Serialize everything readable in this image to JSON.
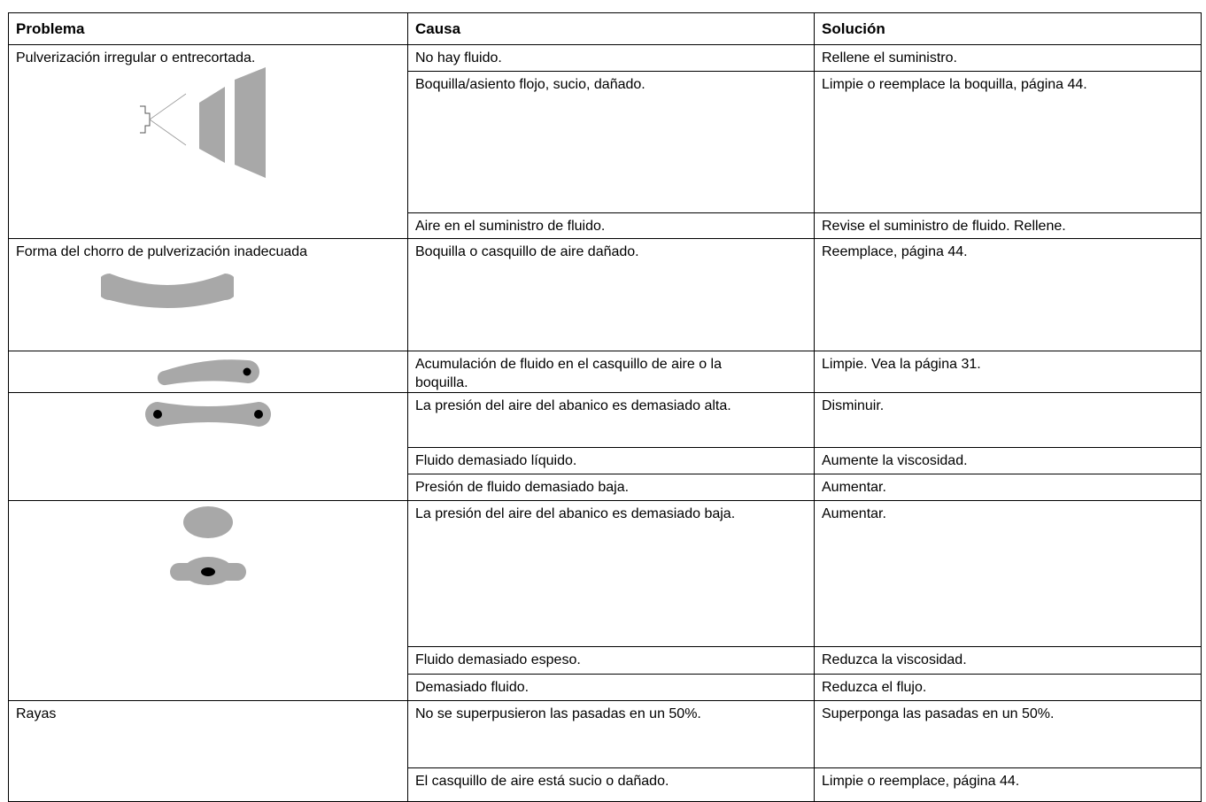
{
  "table": {
    "header": [
      "Problema",
      "Causa",
      "Solución"
    ],
    "groups": [
      {
        "problem": "Pulverización irregular o entrecortada.",
        "causes": [
          {
            "cause": "No hay fluido.",
            "solution": "Rellene el suministro."
          },
          {
            "cause": "Boquilla/asiento flojo, sucio, dañado.",
            "solution": "Limpie o reemplace la boquilla, página 44."
          },
          {
            "cause": "Aire en el suministro de fluido.",
            "solution": "Revise el suministro de fluido. Rellene."
          }
        ]
      },
      {
        "problem": "Forma del chorro de pulverización inadecuada",
        "causes": [
          {
            "cause": "Boquilla o casquillo de aire dañado.",
            "solution": "Reemplace, página 44."
          }
        ]
      },
      {
        "causes": [
          {
            "cause": "Acumulación de fluido en el casquillo de aire o la boquilla.",
            "solution": "Limpie. Vea la página 31."
          }
        ]
      },
      {
        "causes": [
          {
            "cause": "La presión del aire del abanico es dema­siado alta.",
            "solution": "Disminuir."
          },
          {
            "cause": "Fluido demasiado líquido.",
            "solution": "Aumente la viscosidad."
          },
          {
            "cause": "Presión de fluido demasiado baja.",
            "solution": "Aumentar."
          }
        ]
      },
      {
        "causes": [
          {
            "cause": "La presión del aire del abanico es dema­siado baja.",
            "solution": "Aumentar."
          },
          {
            "cause": "Fluido demasiado espeso.",
            "solution": "Reduzca la viscosidad."
          },
          {
            "cause": "Demasiado fluido.",
            "solution": "Reduzca el flujo."
          }
        ]
      },
      {
        "problem": "Rayas",
        "causes": [
          {
            "cause": "No se superpusieron las pasadas en un 50%.",
            "solution": "Superponga las pasadas en un 50%."
          },
          {
            "cause": "El casquillo de aire está sucio o dañado.",
            "solution": "Limpie o reemplace, página 44."
          }
        ]
      }
    ]
  }
}
